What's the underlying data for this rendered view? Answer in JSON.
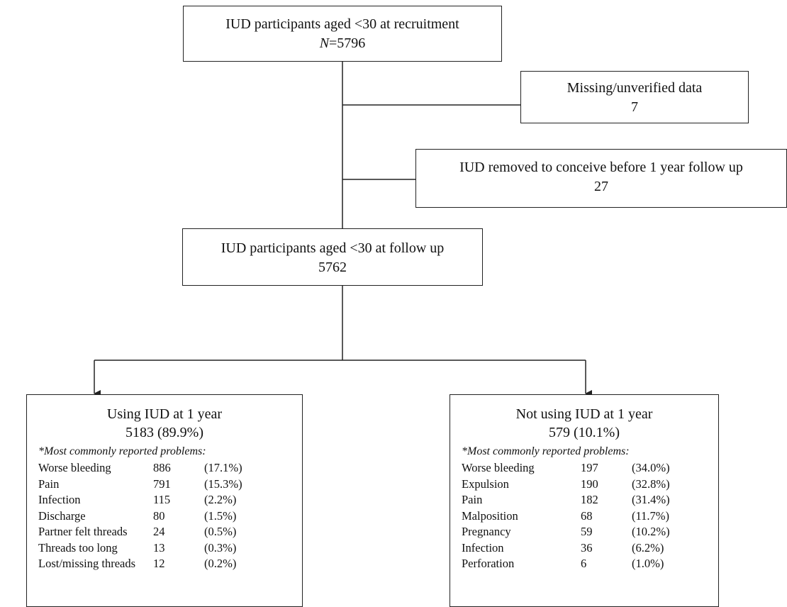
{
  "boxes": {
    "recruitment": {
      "title": "IUD participants aged <30 at recruitment",
      "n_label": "N",
      "n_value": "=5796"
    },
    "missing": {
      "title": "Missing/unverified data",
      "count": "7"
    },
    "removed": {
      "title": "IUD removed to conceive before 1 year follow up",
      "count": "27"
    },
    "followup": {
      "title": "IUD participants aged <30 at follow up",
      "count": "5762"
    }
  },
  "using": {
    "title": "Using IUD at 1 year",
    "summary": "5183 (89.9%)",
    "note": "*Most commonly reported problems:",
    "problems": [
      {
        "name": "Worse bleeding",
        "count": "886",
        "pct": "(17.1%)"
      },
      {
        "name": "Pain",
        "count": "791",
        "pct": "(15.3%)"
      },
      {
        "name": "Infection",
        "count": "115",
        "pct": "(2.2%)"
      },
      {
        "name": "Discharge",
        "count": "80",
        "pct": "(1.5%)"
      },
      {
        "name": "Partner felt threads",
        "count": "24",
        "pct": "(0.5%)"
      },
      {
        "name": "Threads too long",
        "count": "13",
        "pct": "(0.3%)"
      },
      {
        "name": "Lost/missing threads",
        "count": "12",
        "pct": "(0.2%)"
      }
    ]
  },
  "not_using": {
    "title": "Not using IUD at 1 year",
    "summary": "579 (10.1%)",
    "note": "*Most commonly reported problems:",
    "problems": [
      {
        "name": "Worse bleeding",
        "count": "197",
        "pct": "(34.0%)"
      },
      {
        "name": "Expulsion",
        "count": "190",
        "pct": "(32.8%)"
      },
      {
        "name": "Pain",
        "count": "182",
        "pct": "(31.4%)"
      },
      {
        "name": "Malposition",
        "count": "68",
        "pct": "(11.7%)"
      },
      {
        "name": "Pregnancy",
        "count": "59",
        "pct": "(10.2%)"
      },
      {
        "name": "Infection",
        "count": "36",
        "pct": "(6.2%)"
      },
      {
        "name": "Perforation",
        "count": "6",
        "pct": "(1.0%)"
      }
    ]
  }
}
